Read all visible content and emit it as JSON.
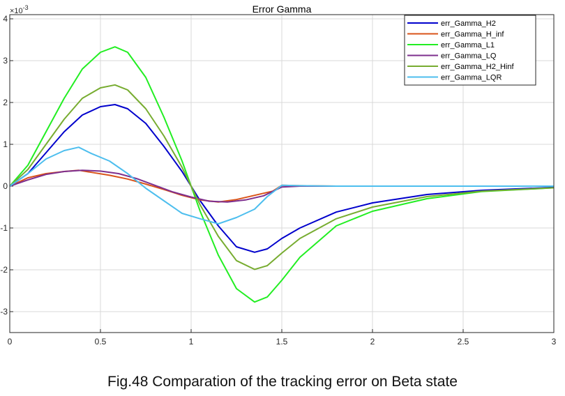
{
  "caption": "Fig.48 Comparation of the tracking error on Beta state",
  "chart_data": {
    "type": "line",
    "title": "Error Gamma",
    "y_exponent_label": "×10",
    "y_exponent_power": "-3",
    "xlim": [
      0,
      3
    ],
    "ylim": [
      -3.5,
      4.1
    ],
    "x_ticks": [
      0,
      0.5,
      1,
      1.5,
      2,
      2.5,
      3
    ],
    "x_tick_labels": [
      "0",
      "0.5",
      "1",
      "1.5",
      "2",
      "2.5",
      "3"
    ],
    "y_ticks": [
      -3,
      -2,
      -1,
      0,
      1,
      2,
      3,
      4
    ],
    "y_tick_labels": [
      "-3",
      "-2",
      "-1",
      "0",
      "1",
      "2",
      "3",
      "4"
    ],
    "grid": true,
    "legend_position": "top-right",
    "series": [
      {
        "name": "err_Gamma_H2",
        "color": "#0000cc",
        "x": [
          0,
          0.1,
          0.2,
          0.3,
          0.4,
          0.5,
          0.58,
          0.65,
          0.75,
          0.85,
          0.95,
          1.0,
          1.05,
          1.15,
          1.25,
          1.35,
          1.42,
          1.5,
          1.6,
          1.8,
          2.0,
          2.3,
          2.6,
          3.0
        ],
        "y": [
          0,
          0.3,
          0.8,
          1.3,
          1.7,
          1.9,
          1.95,
          1.85,
          1.5,
          0.95,
          0.35,
          0,
          -0.35,
          -0.95,
          -1.45,
          -1.58,
          -1.5,
          -1.25,
          -1.0,
          -0.62,
          -0.4,
          -0.2,
          -0.1,
          -0.03
        ]
      },
      {
        "name": "err_Gamma_H_inf",
        "color": "#d95319",
        "x": [
          0,
          0.1,
          0.2,
          0.3,
          0.38,
          0.45,
          0.55,
          0.65,
          0.75,
          0.85,
          0.95,
          1.05,
          1.15,
          1.25,
          1.35,
          1.45,
          1.5,
          1.6,
          1.8,
          2.0,
          3.0
        ],
        "y": [
          0,
          0.2,
          0.3,
          0.35,
          0.38,
          0.33,
          0.26,
          0.17,
          0.05,
          -0.08,
          -0.22,
          -0.33,
          -0.38,
          -0.32,
          -0.22,
          -0.12,
          0.02,
          0.01,
          0,
          0,
          0
        ]
      },
      {
        "name": "err_Gamma_L1",
        "color": "#22ee22",
        "x": [
          0,
          0.1,
          0.2,
          0.3,
          0.4,
          0.5,
          0.58,
          0.65,
          0.75,
          0.85,
          0.95,
          1.0,
          1.05,
          1.15,
          1.25,
          1.35,
          1.42,
          1.5,
          1.6,
          1.8,
          2.0,
          2.3,
          2.6,
          3.0
        ],
        "y": [
          0,
          0.5,
          1.3,
          2.1,
          2.8,
          3.2,
          3.33,
          3.2,
          2.6,
          1.65,
          0.6,
          0,
          -0.6,
          -1.65,
          -2.45,
          -2.77,
          -2.65,
          -2.25,
          -1.7,
          -0.95,
          -0.6,
          -0.3,
          -0.13,
          -0.04
        ]
      },
      {
        "name": "err_Gamma_LQ",
        "color": "#7e2f8e",
        "x": [
          0,
          0.1,
          0.2,
          0.3,
          0.4,
          0.5,
          0.6,
          0.7,
          0.8,
          0.9,
          1.0,
          1.1,
          1.2,
          1.3,
          1.4,
          1.5,
          1.6,
          1.8,
          2.0,
          3.0
        ],
        "y": [
          0,
          0.15,
          0.28,
          0.35,
          0.38,
          0.36,
          0.3,
          0.18,
          0.02,
          -0.14,
          -0.26,
          -0.36,
          -0.38,
          -0.33,
          -0.23,
          -0.02,
          0,
          0,
          0,
          0
        ]
      },
      {
        "name": "err_Gamma_H2_Hinf",
        "color": "#77ac30",
        "x": [
          0,
          0.1,
          0.2,
          0.3,
          0.4,
          0.5,
          0.58,
          0.65,
          0.75,
          0.85,
          0.95,
          1.0,
          1.05,
          1.15,
          1.25,
          1.35,
          1.42,
          1.5,
          1.6,
          1.8,
          2.0,
          2.3,
          2.6,
          3.0
        ],
        "y": [
          0,
          0.4,
          1.0,
          1.6,
          2.1,
          2.35,
          2.42,
          2.3,
          1.85,
          1.2,
          0.45,
          0,
          -0.45,
          -1.2,
          -1.78,
          -1.99,
          -1.9,
          -1.6,
          -1.25,
          -0.78,
          -0.5,
          -0.25,
          -0.12,
          -0.04
        ]
      },
      {
        "name": "err_Gamma_LQR",
        "color": "#4dbeee",
        "x": [
          0,
          0.1,
          0.2,
          0.3,
          0.38,
          0.45,
          0.55,
          0.65,
          0.75,
          0.85,
          0.95,
          1.05,
          1.15,
          1.25,
          1.35,
          1.42,
          1.5,
          1.6,
          1.8,
          2.0,
          3.0
        ],
        "y": [
          0,
          0.3,
          0.65,
          0.85,
          0.93,
          0.78,
          0.6,
          0.3,
          -0.05,
          -0.35,
          -0.65,
          -0.78,
          -0.9,
          -0.75,
          -0.55,
          -0.25,
          0.02,
          0.01,
          0,
          0,
          0
        ]
      }
    ]
  }
}
